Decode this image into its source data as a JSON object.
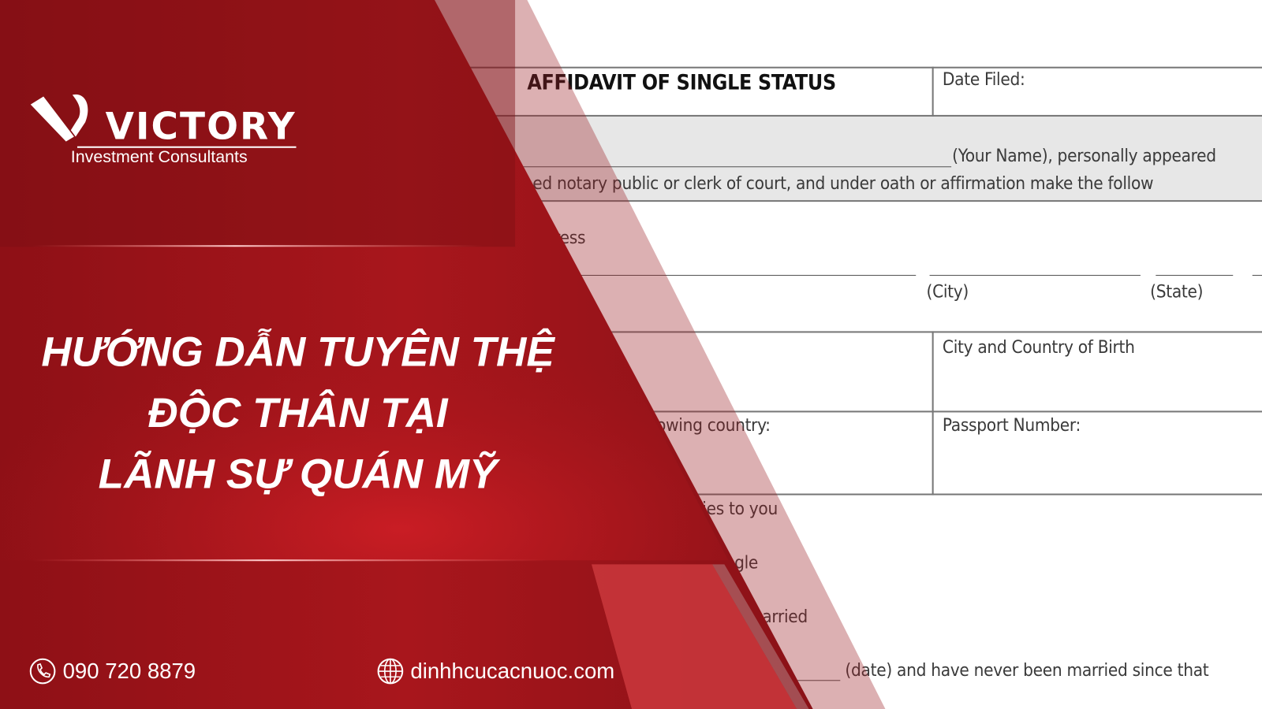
{
  "brand": {
    "logo_text": "VICTORY",
    "tagline": "Investment Consultants"
  },
  "headline": {
    "line1": "HƯỚNG DẪN TUYÊN THỆ",
    "line2": "ĐỘC THÂN TẠI",
    "line3": "LÃNH SỰ QUÁN MỸ"
  },
  "contact": {
    "phone_icon": "phone-icon",
    "phone": "090 720 8879",
    "web_icon": "globe-icon",
    "website": "dinhhcucacnuoc.com"
  },
  "document": {
    "title": "AFFIDAVIT OF SINGLE STATUS",
    "date_filed": "Date Filed:",
    "your_name": "(Your Name), personally appeared",
    "oath_line": "dersigned notary public or clerk of court, and under oath or affirmation make the follow",
    "address": "nt Address",
    "city": "(City)",
    "state": "(State)",
    "birth": "City and Country of Birth",
    "country": "llowing country:",
    "passport": "Passport Number:",
    "applies": "plies to you",
    "single": "ingle",
    "married": "married",
    "date_line": "(date) and have never been married since that"
  },
  "colors": {
    "brand_red": "#9c141a",
    "accent_red": "#c8252b"
  }
}
